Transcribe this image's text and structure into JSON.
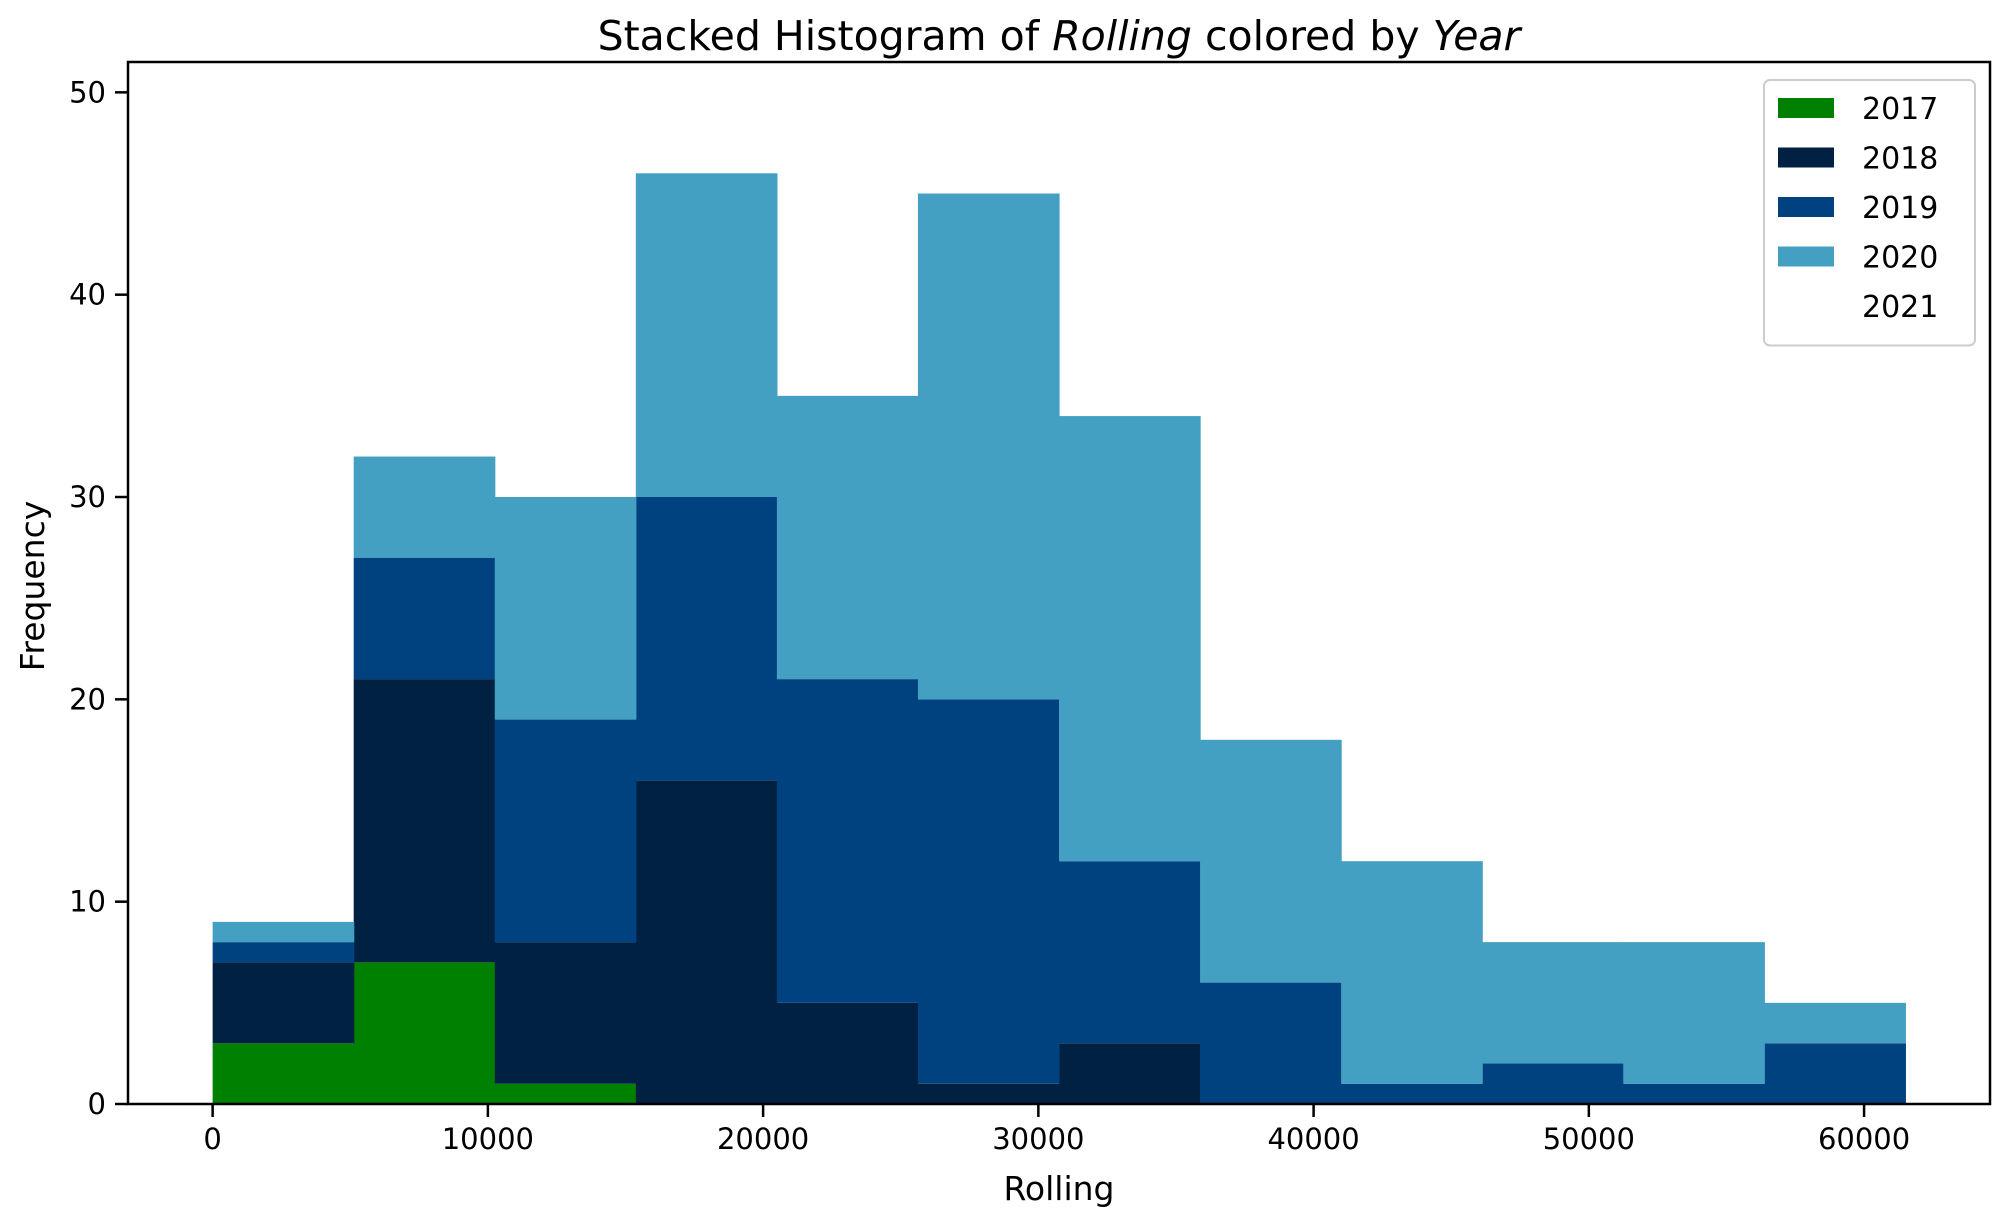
{
  "chart_data": {
    "type": "bar",
    "stacked": true,
    "histogram": true,
    "title_parts": [
      {
        "text": "Stacked Histogram of ",
        "italic": false
      },
      {
        "text": "Rolling",
        "italic": true
      },
      {
        "text": " colored by ",
        "italic": false
      },
      {
        "text": "Year",
        "italic": true
      }
    ],
    "xlabel": "Rolling",
    "ylabel": "Frequency",
    "xlim": [
      -3075,
      64575
    ],
    "ylim": [
      0,
      51.5
    ],
    "xticks": [
      0,
      10000,
      20000,
      30000,
      40000,
      50000,
      60000
    ],
    "yticks": [
      0,
      10,
      20,
      30,
      40,
      50
    ],
    "bin_edges": [
      0,
      5125,
      10250,
      15375,
      20500,
      25625,
      30750,
      35875,
      41000,
      46125,
      51250,
      56375,
      61500
    ],
    "series": [
      {
        "name": "2017",
        "color": "#008000",
        "values": [
          3,
          7,
          1,
          0,
          0,
          0,
          0,
          0,
          0,
          0,
          0,
          0
        ]
      },
      {
        "name": "2018",
        "color": "#002141",
        "values": [
          4,
          14,
          7,
          16,
          5,
          1,
          3,
          0,
          0,
          0,
          0,
          0
        ]
      },
      {
        "name": "2019",
        "color": "#00427f",
        "values": [
          1,
          6,
          11,
          14,
          16,
          19,
          9,
          6,
          1,
          2,
          1,
          3
        ]
      },
      {
        "name": "2020",
        "color": "#43a0c2",
        "values": [
          1,
          5,
          11,
          16,
          14,
          25,
          22,
          12,
          11,
          6,
          7,
          2
        ]
      },
      {
        "name": "2021",
        "color": "#ffffff",
        "values": [
          0,
          0,
          0,
          0,
          0,
          0,
          0,
          0,
          0,
          0,
          0,
          0
        ]
      }
    ],
    "grid": false,
    "legend_position": "top-right"
  }
}
